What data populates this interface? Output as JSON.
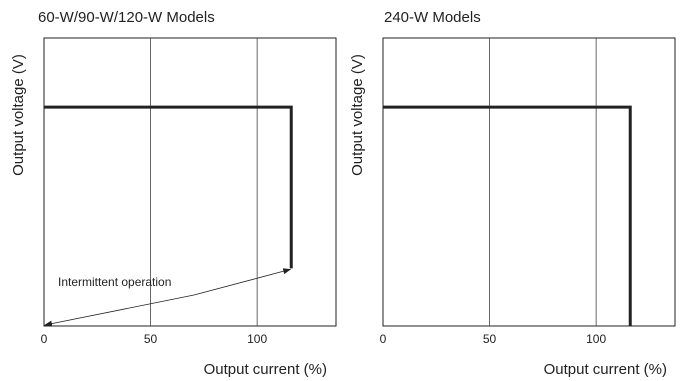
{
  "chart_data": [
    {
      "type": "line",
      "title": "60-W/90-W/120-W Models",
      "xlabel": "Output current (%)",
      "ylabel": "Output voltage (V)",
      "xlim": [
        0,
        137
      ],
      "ylim": [
        0,
        100
      ],
      "x_ticks": [
        0,
        50,
        100
      ],
      "x_tick_labels": [
        "0",
        "50",
        "100"
      ],
      "grid": "vertical",
      "series": [
        {
          "x": [
            0,
            116,
            116
          ],
          "y": [
            76,
            76,
            20
          ]
        }
      ],
      "annotations": [
        {
          "text": "Intermittent operation",
          "arrows_to": [
            [
              116,
              20
            ],
            [
              0,
              0
            ]
          ]
        }
      ]
    },
    {
      "type": "line",
      "title": "240-W Models",
      "xlabel": "Output current (%)",
      "ylabel": "Output voltage (V)",
      "xlim": [
        0,
        137
      ],
      "ylim": [
        0,
        100
      ],
      "x_ticks": [
        0,
        50,
        100
      ],
      "x_tick_labels": [
        "0",
        "50",
        "100"
      ],
      "grid": "vertical",
      "series": [
        {
          "x": [
            0,
            116,
            116
          ],
          "y": [
            76,
            76,
            0
          ]
        }
      ],
      "annotations": []
    }
  ]
}
